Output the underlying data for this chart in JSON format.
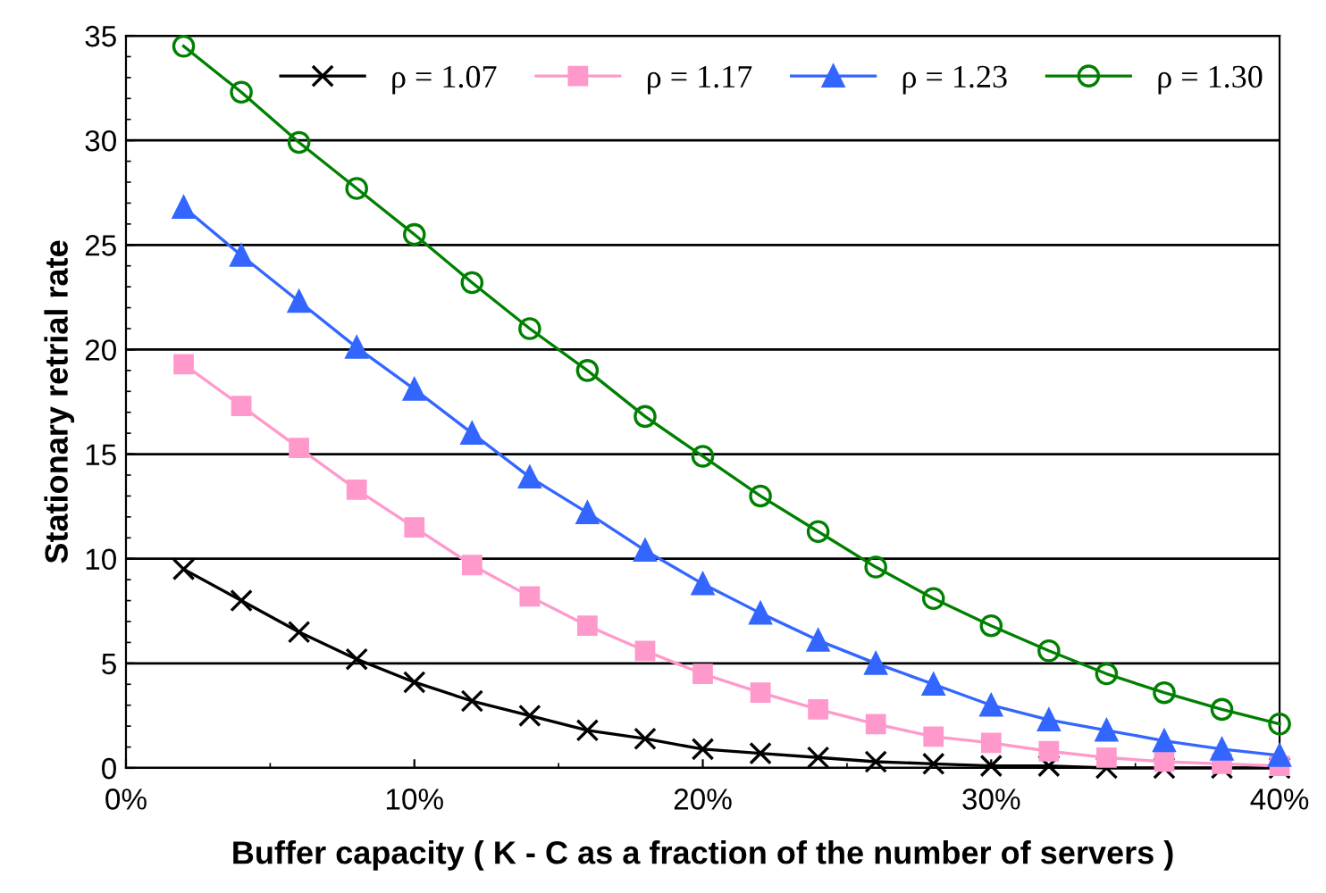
{
  "chart_data": {
    "type": "line",
    "xlabel": "Buffer capacity ( K - C as a fraction of the number of servers )",
    "ylabel": "Stationary retrial rate",
    "x": [
      2,
      4,
      6,
      8,
      10,
      12,
      14,
      16,
      18,
      20,
      22,
      24,
      26,
      28,
      30,
      32,
      34,
      36,
      38,
      40
    ],
    "xlim": [
      0,
      40
    ],
    "xticks": [
      {
        "value": 0,
        "label": "0%"
      },
      {
        "value": 10,
        "label": "10%"
      },
      {
        "value": 20,
        "label": "20%"
      },
      {
        "value": 30,
        "label": "30%"
      },
      {
        "value": 40,
        "label": "40%"
      }
    ],
    "ylim": [
      0,
      35
    ],
    "yticks": [
      0,
      5,
      10,
      15,
      20,
      25,
      30,
      35
    ],
    "grid": "y",
    "legend": "top",
    "series": [
      {
        "name": "ρ = 1.07",
        "color": "#000000",
        "marker": "cross",
        "values": [
          9.5,
          8.0,
          6.5,
          5.2,
          4.1,
          3.2,
          2.5,
          1.8,
          1.4,
          0.9,
          0.7,
          0.5,
          0.3,
          0.2,
          0.1,
          0.1,
          0.0,
          0.0,
          0.0,
          0.0
        ]
      },
      {
        "name": "ρ = 1.17",
        "color": "#ff99cc",
        "marker": "square",
        "values": [
          19.3,
          17.3,
          15.3,
          13.3,
          11.5,
          9.7,
          8.2,
          6.8,
          5.6,
          4.5,
          3.6,
          2.8,
          2.1,
          1.5,
          1.2,
          0.8,
          0.5,
          0.3,
          0.2,
          0.1
        ]
      },
      {
        "name": "ρ = 1.23",
        "color": "#3366ff",
        "marker": "triangle",
        "values": [
          26.8,
          24.5,
          22.3,
          20.1,
          18.1,
          16.0,
          13.9,
          12.2,
          10.4,
          8.8,
          7.4,
          6.1,
          5.0,
          4.0,
          3.0,
          2.3,
          1.8,
          1.3,
          0.9,
          0.6
        ]
      },
      {
        "name": "ρ = 1.30",
        "color": "#008000",
        "marker": "circle",
        "values": [
          34.5,
          32.3,
          29.9,
          27.7,
          25.5,
          23.2,
          21.0,
          19.0,
          16.8,
          14.9,
          13.0,
          11.3,
          9.6,
          8.1,
          6.8,
          5.6,
          4.5,
          3.6,
          2.8,
          2.1
        ]
      }
    ]
  }
}
